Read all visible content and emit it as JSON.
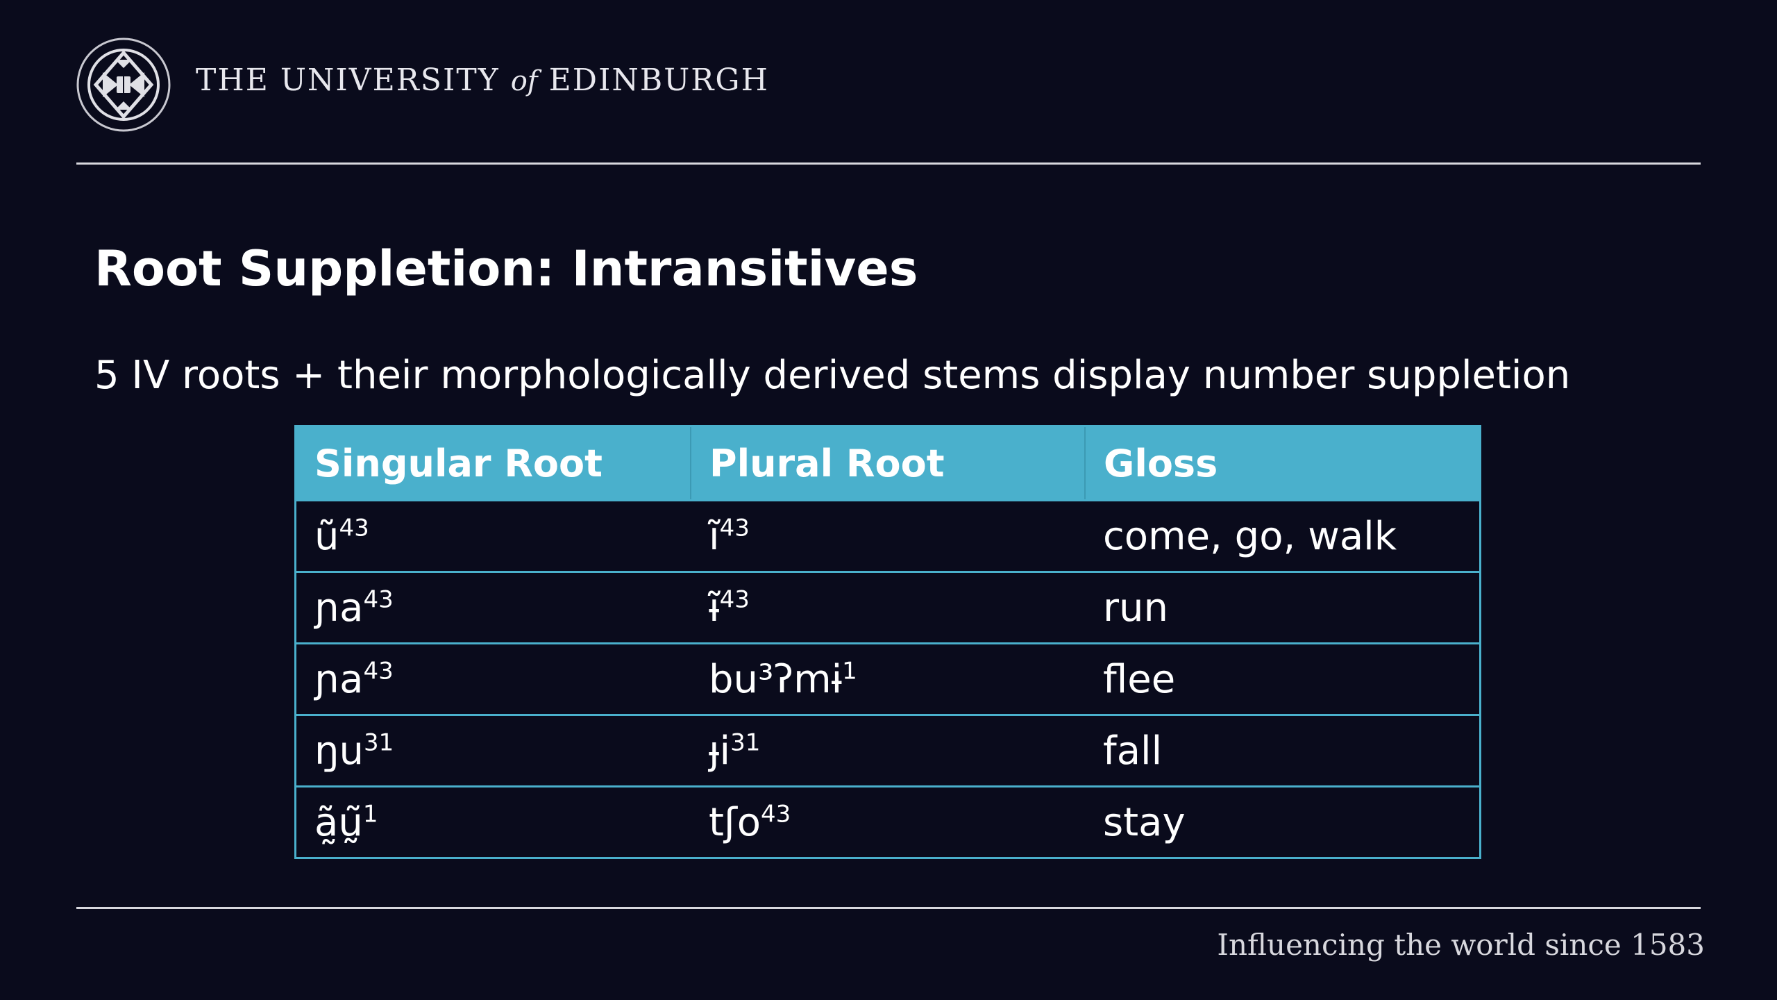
{
  "header": {
    "institution_pre": "THE UNIVERSITY ",
    "institution_of": "of",
    "institution_post": " EDINBURGH"
  },
  "slide": {
    "title": "Root Suppletion: Intransitives",
    "subtitle": "5 IV roots + their morphologically derived stems display number suppletion"
  },
  "table": {
    "headers": [
      "Singular Root",
      "Plural Root",
      "Gloss"
    ],
    "rows": [
      {
        "sg_base": "ũ",
        "sg_tone": "43",
        "pl_base": "ĩ",
        "pl_tone": "43",
        "gloss": "come, go, walk"
      },
      {
        "sg_base": "ɲa",
        "sg_tone": "43",
        "pl_base": "ɨ̃",
        "pl_tone": "43",
        "gloss": "run"
      },
      {
        "sg_base": "ɲa",
        "sg_tone": "43",
        "pl_base": "bu³ʔmɨ",
        "pl_tone": "1",
        "gloss": "flee"
      },
      {
        "sg_base": "ŋu",
        "sg_tone": "31",
        "pl_base": "ɟi",
        "pl_tone": "31",
        "gloss": "fall"
      },
      {
        "sg_base": "ã̰ṵ̃",
        "sg_tone": "1",
        "pl_base": "tʃo",
        "pl_tone": "43",
        "gloss": "stay"
      }
    ]
  },
  "footer": {
    "tagline": "Influencing the world since 1583"
  }
}
